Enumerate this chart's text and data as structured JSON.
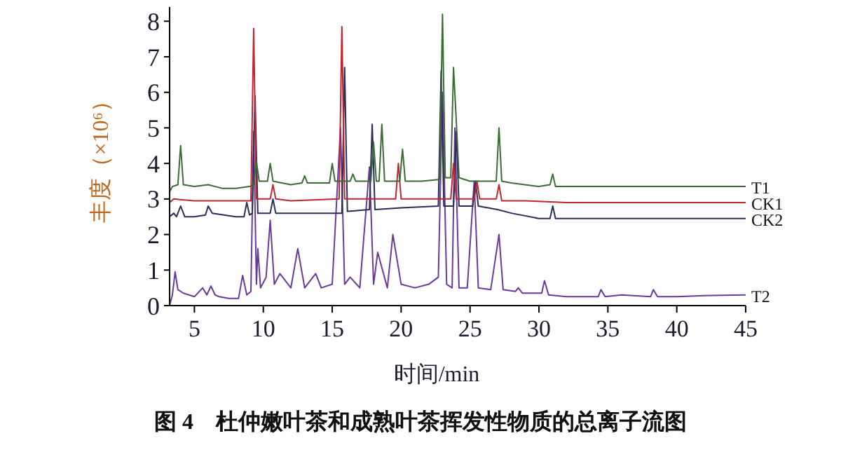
{
  "chart_data": {
    "type": "line",
    "title": "图 4　杜仲嫩叶茶和成熟叶茶挥发性物质的总离子流图",
    "xlabel": "时间/min",
    "ylabel": "丰度（×10⁶）",
    "xlim": [
      3.2,
      45
    ],
    "ylim": [
      0,
      8.4
    ],
    "xticks": [
      5,
      10,
      15,
      20,
      25,
      30,
      35,
      40,
      45
    ],
    "yticks": [
      0,
      1,
      2,
      3,
      4,
      5,
      6,
      7,
      8
    ],
    "grid": false,
    "marker": "none",
    "line_style": "solid",
    "series": [
      {
        "name": "T1",
        "color": "#3d6b35",
        "x": [
          3.2,
          3.4,
          3.8,
          4.0,
          4.2,
          5,
          6,
          7,
          8,
          9,
          9.3,
          9.5,
          9.7,
          10.3,
          10.5,
          10.7,
          12,
          12.8,
          13,
          13.2,
          14.8,
          15,
          15.2,
          16.3,
          16.5,
          16.7,
          17.8,
          18,
          18.2,
          18.4,
          18.6,
          18.8,
          19.9,
          20.1,
          20.3,
          21.5,
          22.8,
          23.0,
          23.2,
          23.6,
          23.8,
          24.0,
          24.2,
          25,
          26.9,
          27.1,
          27.3,
          28,
          30,
          30.8,
          31,
          31.2,
          33,
          36,
          40,
          45
        ],
        "values": [
          3.2,
          3.35,
          3.4,
          4.5,
          3.4,
          3.35,
          3.4,
          3.3,
          3.3,
          3.35,
          3.4,
          4.05,
          3.5,
          3.5,
          4.0,
          3.5,
          3.4,
          3.45,
          3.65,
          3.45,
          3.45,
          4.0,
          3.5,
          3.5,
          3.7,
          3.5,
          3.5,
          4.6,
          3.5,
          3.5,
          5.1,
          3.5,
          3.5,
          4.4,
          3.5,
          3.5,
          3.55,
          8.2,
          3.6,
          3.6,
          6.7,
          5.2,
          3.6,
          3.5,
          3.5,
          5.0,
          3.5,
          3.45,
          3.35,
          3.4,
          3.7,
          3.35,
          3.35,
          3.35,
          3.35,
          3.35
        ]
      },
      {
        "name": "CK1",
        "color": "#c0262e",
        "x": [
          3.2,
          3.5,
          5,
          6,
          9.1,
          9.3,
          9.5,
          10.5,
          10.7,
          10.9,
          12,
          15.5,
          15.7,
          15.9,
          18,
          19.6,
          19.8,
          20,
          22,
          23.6,
          23.8,
          24,
          25.3,
          25.5,
          25.7,
          26.9,
          27.1,
          27.3,
          29,
          32,
          36,
          40,
          45
        ],
        "values": [
          2.9,
          3.0,
          2.95,
          2.95,
          2.95,
          7.8,
          3.0,
          3.0,
          3.4,
          3.0,
          2.95,
          3.0,
          7.85,
          3.0,
          3.0,
          3.0,
          4.0,
          3.0,
          3.0,
          3.0,
          4.0,
          3.0,
          3.0,
          3.5,
          3.0,
          3.0,
          3.4,
          2.95,
          2.95,
          2.9,
          2.9,
          2.9,
          2.9
        ]
      },
      {
        "name": "CK2",
        "color": "#2a2d5c",
        "x": [
          3.2,
          3.5,
          3.7,
          4.0,
          4.3,
          5,
          5.8,
          6.0,
          6.3,
          8,
          8.6,
          8.8,
          9.0,
          9.2,
          9.4,
          9.6,
          10.5,
          10.7,
          10.9,
          13,
          15.7,
          15.9,
          16.1,
          17.7,
          17.9,
          18.1,
          20,
          22.7,
          22.9,
          23.1,
          23.8,
          24,
          24.2,
          25.2,
          25.4,
          25.6,
          27,
          28,
          30,
          30.8,
          31,
          31.2,
          35,
          40,
          45
        ],
        "values": [
          2.5,
          2.6,
          2.5,
          2.8,
          2.5,
          2.5,
          2.55,
          2.8,
          2.6,
          2.5,
          2.5,
          2.9,
          2.55,
          2.6,
          5.9,
          2.6,
          2.6,
          3.0,
          2.6,
          2.6,
          2.6,
          6.7,
          2.65,
          2.7,
          5.1,
          2.7,
          2.75,
          2.8,
          6.6,
          2.8,
          2.8,
          4.9,
          2.8,
          2.8,
          3.5,
          2.8,
          2.7,
          2.6,
          2.45,
          2.45,
          2.8,
          2.45,
          2.45,
          2.45,
          2.45
        ]
      },
      {
        "name": "T2",
        "color": "#6a3a9a",
        "x": [
          3.2,
          3.4,
          3.6,
          3.8,
          4.2,
          5,
          5.6,
          5.9,
          6.2,
          6.5,
          6.8,
          7.5,
          8.2,
          8.5,
          8.8,
          9.1,
          9.3,
          9.5,
          9.6,
          9.8,
          10.2,
          10.5,
          10.8,
          11.2,
          12,
          12.5,
          13,
          13.8,
          14.2,
          15,
          15.6,
          15.9,
          16.3,
          17,
          17.7,
          18,
          18.3,
          19,
          19.4,
          20,
          21,
          22,
          22.7,
          23,
          23.3,
          23.7,
          23.9,
          24.2,
          24.8,
          25.3,
          25.6,
          26.5,
          27.1,
          27.4,
          28.3,
          28.5,
          28.8,
          30.2,
          30.4,
          30.7,
          32,
          34.3,
          34.5,
          34.8,
          36,
          38.1,
          38.3,
          38.6,
          40,
          42,
          45
        ],
        "values": [
          0,
          0.3,
          0.95,
          0.45,
          0.35,
          0.25,
          0.5,
          0.3,
          0.55,
          0.3,
          0.25,
          0.2,
          0.2,
          0.85,
          0.3,
          0.4,
          4.9,
          0.6,
          1.6,
          0.5,
          0.8,
          2.4,
          0.6,
          0.9,
          0.5,
          1.6,
          0.5,
          0.9,
          0.5,
          0.6,
          5.0,
          0.6,
          0.8,
          0.5,
          3.9,
          0.6,
          1.5,
          0.5,
          2.0,
          0.6,
          0.5,
          0.6,
          0.8,
          6.0,
          0.6,
          0.5,
          5.0,
          0.5,
          0.5,
          3.5,
          0.5,
          0.45,
          2.0,
          0.45,
          0.4,
          0.5,
          0.35,
          0.35,
          0.7,
          0.3,
          0.25,
          0.25,
          0.45,
          0.25,
          0.3,
          0.25,
          0.45,
          0.25,
          0.25,
          0.28,
          0.3
        ]
      }
    ]
  }
}
